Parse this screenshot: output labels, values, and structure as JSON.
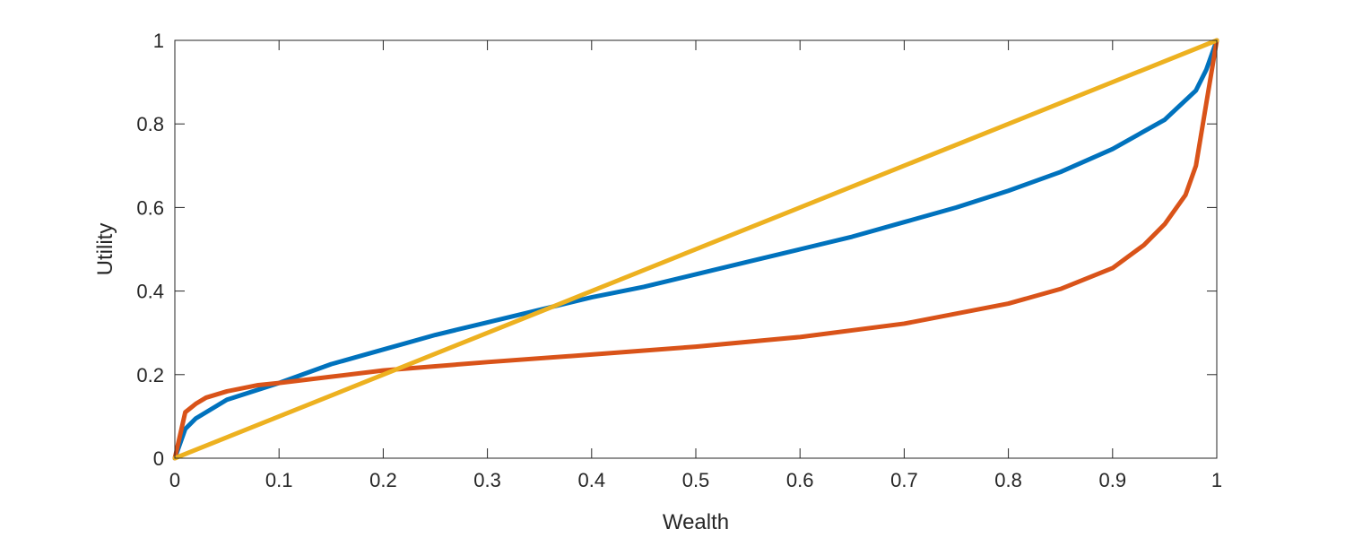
{
  "chart_data": {
    "type": "line",
    "title": "",
    "xlabel": "Wealth",
    "ylabel": "Utility",
    "xlim": [
      0,
      1
    ],
    "ylim": [
      0,
      1
    ],
    "xticks": [
      0,
      0.1,
      0.2,
      0.3,
      0.4,
      0.5,
      0.6,
      0.7,
      0.8,
      0.9,
      1
    ],
    "xtick_labels": [
      "0",
      "0.1",
      "0.2",
      "0.3",
      "0.4",
      "0.5",
      "0.6",
      "0.7",
      "0.8",
      "0.9",
      "1"
    ],
    "yticks": [
      0,
      0.2,
      0.4,
      0.6,
      0.8,
      1
    ],
    "ytick_labels": [
      "0",
      "0.2",
      "0.4",
      "0.6",
      "0.8",
      "1"
    ],
    "grid": false,
    "legend": "none",
    "series": [
      {
        "color": "#0072BD",
        "x": [
          0,
          0.01,
          0.02,
          0.05,
          0.1,
          0.15,
          0.2,
          0.25,
          0.3,
          0.35,
          0.4,
          0.45,
          0.5,
          0.55,
          0.6,
          0.65,
          0.7,
          0.75,
          0.8,
          0.85,
          0.9,
          0.95,
          0.98,
          0.99,
          1
        ],
        "y": [
          0,
          0.07,
          0.095,
          0.14,
          0.18,
          0.225,
          0.26,
          0.295,
          0.325,
          0.355,
          0.385,
          0.41,
          0.44,
          0.47,
          0.5,
          0.53,
          0.565,
          0.6,
          0.64,
          0.685,
          0.74,
          0.81,
          0.88,
          0.93,
          1
        ]
      },
      {
        "color": "#D95319",
        "x": [
          0,
          0.01,
          0.02,
          0.03,
          0.05,
          0.08,
          0.1,
          0.15,
          0.2,
          0.3,
          0.4,
          0.5,
          0.6,
          0.7,
          0.8,
          0.85,
          0.9,
          0.93,
          0.95,
          0.97,
          0.98,
          0.99,
          1
        ],
        "y": [
          0,
          0.11,
          0.13,
          0.145,
          0.16,
          0.175,
          0.18,
          0.195,
          0.21,
          0.23,
          0.248,
          0.267,
          0.29,
          0.322,
          0.37,
          0.405,
          0.455,
          0.51,
          0.56,
          0.63,
          0.7,
          0.85,
          1
        ]
      },
      {
        "color": "#EDB120",
        "x": [
          0,
          1
        ],
        "y": [
          0,
          1
        ]
      }
    ]
  }
}
